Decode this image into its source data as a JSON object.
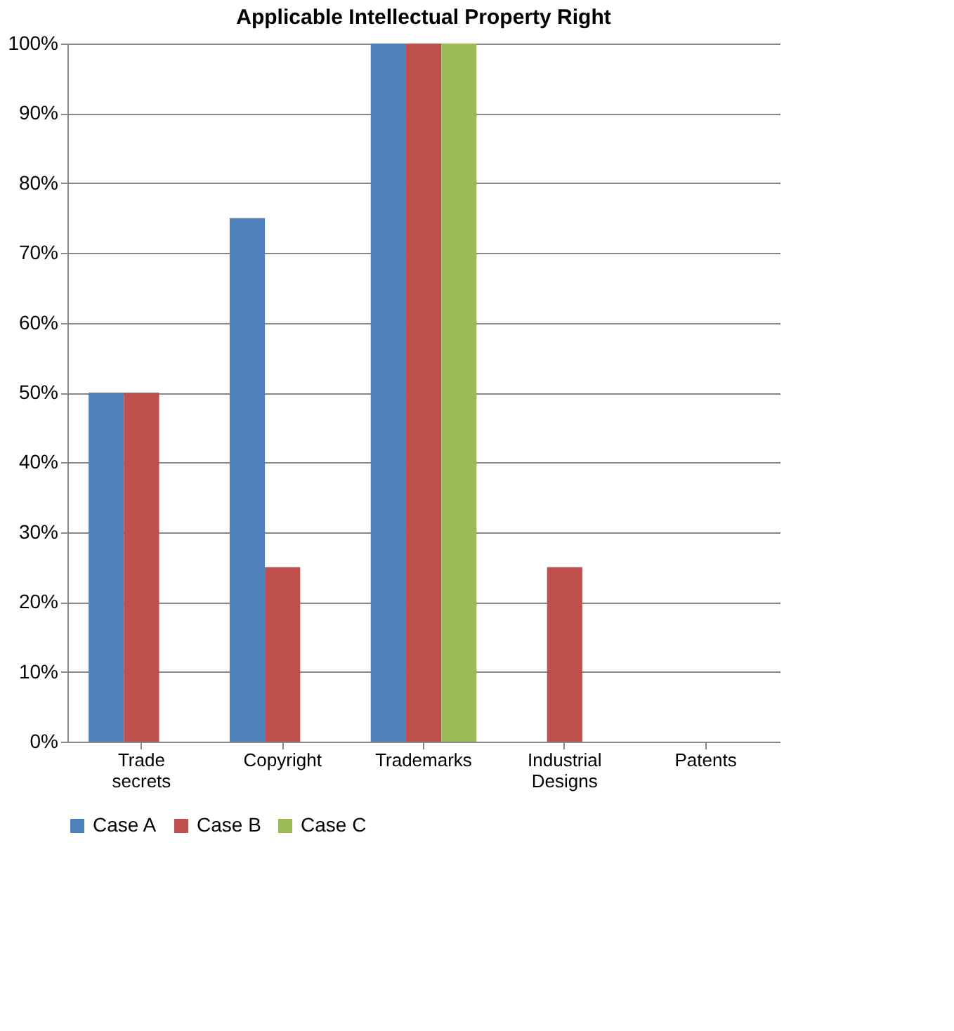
{
  "chart_data": {
    "type": "bar",
    "title": "Applicable Intellectual Property Right",
    "categories": [
      "Trade secrets",
      "Copyright",
      "Trademarks",
      "Industrial Designs",
      "Patents"
    ],
    "series": [
      {
        "name": "Case A",
        "color": "#4f81bd",
        "values": [
          50,
          75,
          100,
          0,
          0
        ]
      },
      {
        "name": "Case B",
        "color": "#c0504d",
        "values": [
          50,
          25,
          100,
          25,
          0
        ]
      },
      {
        "name": "Case C",
        "color": "#9bbb59",
        "values": [
          0,
          0,
          100,
          0,
          0
        ]
      }
    ],
    "ylim": [
      0,
      100
    ],
    "yticks": [
      {
        "value": 0,
        "label": "0%"
      },
      {
        "value": 10,
        "label": "10%"
      },
      {
        "value": 20,
        "label": "20%"
      },
      {
        "value": 30,
        "label": "30%"
      },
      {
        "value": 40,
        "label": "40%"
      },
      {
        "value": 50,
        "label": "50%"
      },
      {
        "value": 60,
        "label": "60%"
      },
      {
        "value": 70,
        "label": "70%"
      },
      {
        "value": 80,
        "label": "80%"
      },
      {
        "value": 90,
        "label": "90%"
      },
      {
        "value": 100,
        "label": "100%"
      }
    ],
    "grid": "y",
    "legend": "bottom"
  }
}
